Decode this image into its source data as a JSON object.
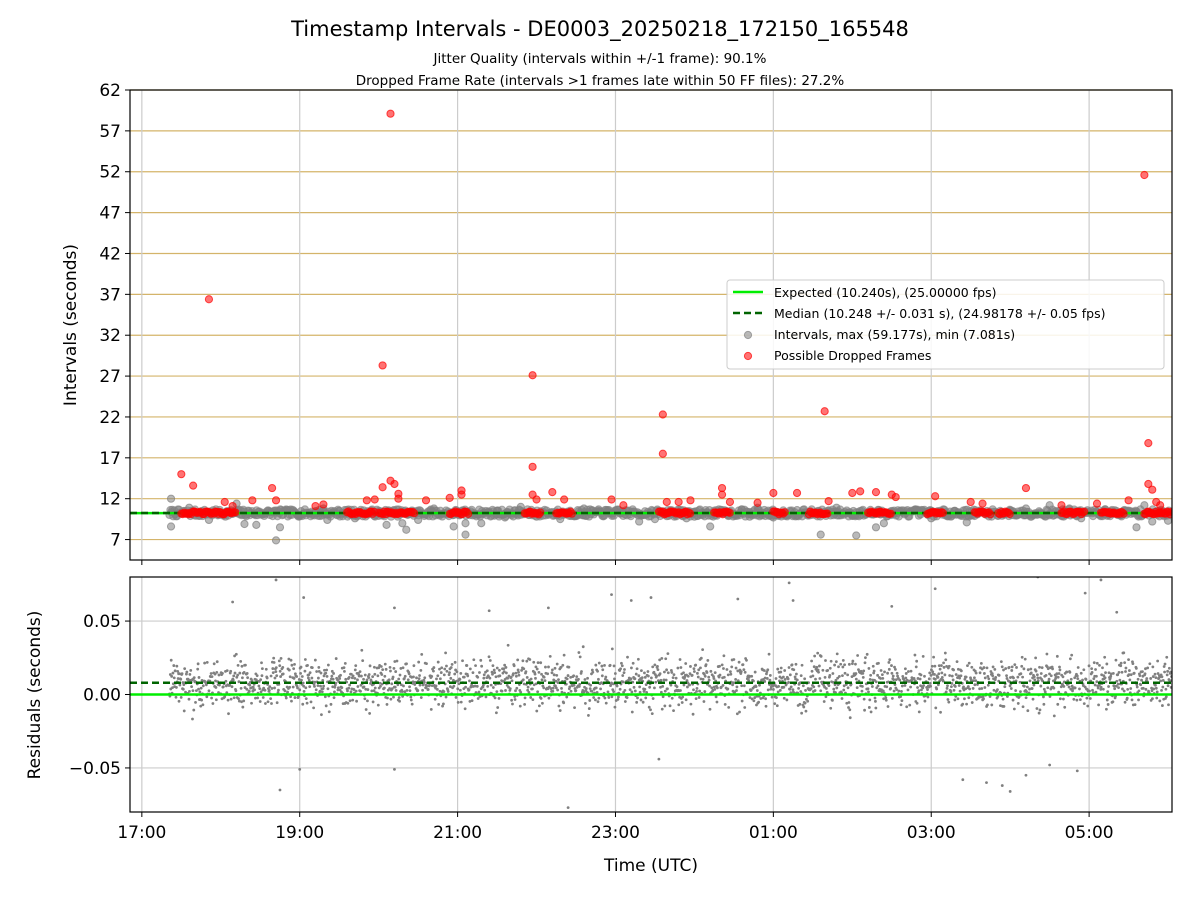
{
  "figure": {
    "title": "Timestamp Intervals - DE0003_20250218_172150_165548",
    "subtitle_1": "Jitter Quality (intervals within +/-1 frame): 90.1%",
    "subtitle_2": "Dropped Frame Rate (intervals >1 frames late within 50 FF files): 27.2%",
    "xlabel": "Time (UTC)"
  },
  "colors": {
    "expected": "#00ee00",
    "median": "#006400",
    "intervals": "#808080",
    "dropped": "#ff0000",
    "hgrid": "#d4b46a",
    "vgrid": "#cccccc"
  },
  "chart_data": [
    {
      "type": "scatter",
      "ylabel": "Intervals (seconds)",
      "ylim": [
        4.5,
        62
      ],
      "yticks": [
        "7",
        "12",
        "17",
        "22",
        "27",
        "32",
        "37",
        "42",
        "47",
        "52",
        "57",
        "62"
      ],
      "xticks": [
        "17:00",
        "19:00",
        "21:00",
        "23:00",
        "01:00",
        "03:00",
        "05:00"
      ],
      "x_range_hours_since_1700": [
        -0.15,
        13.05
      ],
      "grid": "on",
      "legend_position": "center-right",
      "lines": [
        {
          "name": "Expected (10.240s), (25.00000 fps)",
          "y": 10.24,
          "style": "solid"
        },
        {
          "name": "Median (10.248 +/- 0.031 s), (24.98178 +/- 0.05 fps)",
          "y": 10.248,
          "style": "dashed"
        }
      ],
      "series": [
        {
          "name": "Intervals, max (59.177s), min (7.081s)",
          "points": [
            [
              0.37,
              12.0
            ],
            [
              0.37,
              8.6
            ],
            [
              0.6,
              10.9
            ],
            [
              0.85,
              9.4
            ],
            [
              1.2,
              11.4
            ],
            [
              1.3,
              8.9
            ],
            [
              1.45,
              8.8
            ],
            [
              1.7,
              6.9
            ],
            [
              1.75,
              8.5
            ],
            [
              2.0,
              10.0
            ],
            [
              2.3,
              10.8
            ],
            [
              2.35,
              9.4
            ],
            [
              2.5,
              10.5
            ],
            [
              2.7,
              9.6
            ],
            [
              3.0,
              9.9
            ],
            [
              3.1,
              8.8
            ],
            [
              3.3,
              9.0
            ],
            [
              3.35,
              8.2
            ],
            [
              3.5,
              9.4
            ],
            [
              3.7,
              10.8
            ],
            [
              3.95,
              8.6
            ],
            [
              4.1,
              9.0
            ],
            [
              4.1,
              7.6
            ],
            [
              4.3,
              9.0
            ],
            [
              4.5,
              10.5
            ],
            [
              4.6,
              9.7
            ],
            [
              4.8,
              11.0
            ],
            [
              5.0,
              9.8
            ],
            [
              5.3,
              9.5
            ],
            [
              5.6,
              10.8
            ],
            [
              5.9,
              10.6
            ],
            [
              6.3,
              9.2
            ],
            [
              6.5,
              9.5
            ],
            [
              6.7,
              10.6
            ],
            [
              6.9,
              9.6
            ],
            [
              7.0,
              9.8
            ],
            [
              7.2,
              8.6
            ],
            [
              7.4,
              10.5
            ],
            [
              7.6,
              10.7
            ],
            [
              7.7,
              9.8
            ],
            [
              7.8,
              10.9
            ],
            [
              8.0,
              9.7
            ],
            [
              8.3,
              10.6
            ],
            [
              8.6,
              7.6
            ],
            [
              8.8,
              10.9
            ],
            [
              9.0,
              9.9
            ],
            [
              9.05,
              7.5
            ],
            [
              9.3,
              8.5
            ],
            [
              9.4,
              9.0
            ],
            [
              9.5,
              10.5
            ],
            [
              9.8,
              10.7
            ],
            [
              10.0,
              9.6
            ],
            [
              10.3,
              10.5
            ],
            [
              10.45,
              9.1
            ],
            [
              10.7,
              10.2
            ],
            [
              11.0,
              10.5
            ],
            [
              11.2,
              10.8
            ],
            [
              11.5,
              11.2
            ],
            [
              11.75,
              10.8
            ],
            [
              11.9,
              9.6
            ],
            [
              12.2,
              10.7
            ],
            [
              12.4,
              10.0
            ],
            [
              12.6,
              8.5
            ],
            [
              12.7,
              11.2
            ],
            [
              12.8,
              9.2
            ],
            [
              12.9,
              10.5
            ],
            [
              13.0,
              9.3
            ]
          ]
        },
        {
          "name": "Possible Dropped Frames",
          "points": [
            [
              0.5,
              15.0
            ],
            [
              0.65,
              13.6
            ],
            [
              0.85,
              36.4
            ],
            [
              1.05,
              11.6
            ],
            [
              1.15,
              11.1
            ],
            [
              1.4,
              11.8
            ],
            [
              1.65,
              13.3
            ],
            [
              1.7,
              11.8
            ],
            [
              2.2,
              11.1
            ],
            [
              2.3,
              11.3
            ],
            [
              2.85,
              11.8
            ],
            [
              2.95,
              11.9
            ],
            [
              3.05,
              28.3
            ],
            [
              3.05,
              13.4
            ],
            [
              3.15,
              59.1
            ],
            [
              3.15,
              14.2
            ],
            [
              3.2,
              13.8
            ],
            [
              3.25,
              12.6
            ],
            [
              3.25,
              12.0
            ],
            [
              3.6,
              11.8
            ],
            [
              3.9,
              12.1
            ],
            [
              4.05,
              13.0
            ],
            [
              4.05,
              12.5
            ],
            [
              4.95,
              12.5
            ],
            [
              4.95,
              15.9
            ],
            [
              4.95,
              27.1
            ],
            [
              5.0,
              11.9
            ],
            [
              5.2,
              12.8
            ],
            [
              5.35,
              11.9
            ],
            [
              5.95,
              11.9
            ],
            [
              6.1,
              11.2
            ],
            [
              6.6,
              22.3
            ],
            [
              6.6,
              17.5
            ],
            [
              6.65,
              11.6
            ],
            [
              6.8,
              11.6
            ],
            [
              6.95,
              11.8
            ],
            [
              7.35,
              13.3
            ],
            [
              7.35,
              12.5
            ],
            [
              7.45,
              11.6
            ],
            [
              7.8,
              11.5
            ],
            [
              8.0,
              12.7
            ],
            [
              8.3,
              12.7
            ],
            [
              8.65,
              22.7
            ],
            [
              8.7,
              11.7
            ],
            [
              9.0,
              12.7
            ],
            [
              9.1,
              12.9
            ],
            [
              9.3,
              12.8
            ],
            [
              9.5,
              12.5
            ],
            [
              9.55,
              12.2
            ],
            [
              10.05,
              12.3
            ],
            [
              10.5,
              11.6
            ],
            [
              10.65,
              11.4
            ],
            [
              11.2,
              13.3
            ],
            [
              11.65,
              11.2
            ],
            [
              12.1,
              11.4
            ],
            [
              12.5,
              11.8
            ],
            [
              12.7,
              51.6
            ],
            [
              12.75,
              18.8
            ],
            [
              12.75,
              13.8
            ],
            [
              12.8,
              13.1
            ],
            [
              12.85,
              11.6
            ],
            [
              12.9,
              11.2
            ]
          ]
        }
      ]
    },
    {
      "type": "scatter",
      "ylabel": "Residuals (seconds)",
      "ylim": [
        -0.08,
        0.08
      ],
      "yticks": [
        "−0.05",
        "0.00",
        "0.05"
      ],
      "xticks": [
        "17:00",
        "19:00",
        "21:00",
        "23:00",
        "01:00",
        "03:00",
        "05:00"
      ],
      "x_range_hours_since_1700": [
        -0.15,
        13.05
      ],
      "grid": "on",
      "lines": [
        {
          "name": "Expected",
          "y": 0.0,
          "style": "solid"
        },
        {
          "name": "Median",
          "y": 0.008,
          "style": "dashed"
        }
      ],
      "residual_summary": {
        "x_start": 0.35,
        "x_end": 13.05,
        "center": 0.008,
        "spread": 0.012,
        "min": -0.077,
        "max": 0.08
      },
      "outliers": [
        [
          1.15,
          0.063
        ],
        [
          1.75,
          -0.065
        ],
        [
          1.7,
          0.078
        ],
        [
          2.0,
          -0.051
        ],
        [
          2.05,
          0.066
        ],
        [
          3.2,
          0.059
        ],
        [
          3.2,
          -0.051
        ],
        [
          4.4,
          0.057
        ],
        [
          5.15,
          0.059
        ],
        [
          5.4,
          -0.077
        ],
        [
          5.95,
          0.068
        ],
        [
          6.2,
          0.064
        ],
        [
          6.45,
          0.066
        ],
        [
          6.55,
          -0.044
        ],
        [
          7.55,
          0.065
        ],
        [
          8.2,
          0.076
        ],
        [
          8.25,
          0.064
        ],
        [
          9.5,
          0.06
        ],
        [
          10.05,
          0.072
        ],
        [
          10.4,
          -0.058
        ],
        [
          10.7,
          -0.06
        ],
        [
          10.9,
          -0.062
        ],
        [
          11.0,
          -0.066
        ],
        [
          11.2,
          -0.055
        ],
        [
          11.35,
          0.08
        ],
        [
          11.5,
          -0.048
        ],
        [
          11.85,
          -0.052
        ],
        [
          11.95,
          0.069
        ],
        [
          12.15,
          0.078
        ],
        [
          12.35,
          0.056
        ]
      ]
    }
  ]
}
